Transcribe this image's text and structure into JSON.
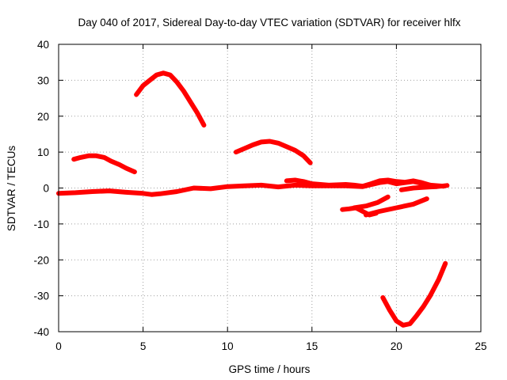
{
  "chart_data": {
    "type": "line",
    "title": "Day 040 of 2017, Sidereal Day-to-day VTEC variation (SDTVAR) for receiver hlfx",
    "xlabel": "GPS time / hours",
    "ylabel": "SDTVAR / TECUs",
    "xlim": [
      0,
      25
    ],
    "ylim": [
      -40,
      40
    ],
    "xticks": [
      0,
      5,
      10,
      15,
      20,
      25
    ],
    "yticks": [
      -40,
      -30,
      -20,
      -10,
      0,
      10,
      20,
      30,
      40
    ],
    "grid": true,
    "legend": "none",
    "line_color": "#ff0000",
    "series": [
      {
        "name": "arc-main-baseline",
        "x": [
          0,
          1,
          2,
          3,
          4,
          5,
          5.5,
          6,
          7,
          8,
          9,
          10,
          11,
          12,
          13,
          14,
          15,
          16,
          17,
          18,
          19,
          19.5,
          20,
          21,
          22,
          22.8
        ],
        "y": [
          -1.5,
          -1.3,
          -1,
          -0.8,
          -1.2,
          -1.5,
          -1.8,
          -1.6,
          -1,
          0,
          -0.2,
          0.4,
          0.6,
          0.8,
          0.3,
          0.8,
          0.6,
          0.6,
          0.6,
          0.4,
          1.5,
          1.8,
          1.2,
          1.8,
          0.8,
          0.5
        ]
      },
      {
        "name": "arc-upper-baseline",
        "x": [
          13.5,
          14,
          14.5,
          15,
          16,
          17,
          17.5,
          18,
          18.5,
          19,
          19.5,
          20,
          20.5,
          21,
          21.5,
          22
        ],
        "y": [
          2,
          2.2,
          1.8,
          1.2,
          0.8,
          1,
          0.8,
          0.5,
          1.2,
          2,
          2.2,
          1.8,
          1.6,
          2,
          1.5,
          0.8
        ]
      },
      {
        "name": "arc-lower-baseline",
        "x": [
          20.3,
          21,
          21.6,
          22,
          22.4,
          22.8,
          23
        ],
        "y": [
          -0.5,
          0,
          0.2,
          0.3,
          0.4,
          0.6,
          0.7
        ]
      },
      {
        "name": "arc-morning-hump",
        "x": [
          0.9,
          1.3,
          1.8,
          2.2,
          2.7,
          3.1,
          3.6,
          4,
          4.5
        ],
        "y": [
          8,
          8.5,
          9,
          9,
          8.5,
          7.5,
          6.5,
          5.5,
          4.5
        ]
      },
      {
        "name": "arc-peak",
        "x": [
          4.6,
          5,
          5.4,
          5.8,
          6.2,
          6.6,
          7,
          7.4,
          7.8,
          8.2,
          8.6
        ],
        "y": [
          26,
          28.5,
          30,
          31.5,
          32,
          31.5,
          29.5,
          27,
          24,
          21,
          17.5
        ]
      },
      {
        "name": "arc-midday-hump",
        "x": [
          10.5,
          11,
          11.5,
          12,
          12.5,
          13,
          13.5,
          14,
          14.5,
          14.9
        ],
        "y": [
          10,
          11,
          12,
          12.8,
          13,
          12.5,
          11.5,
          10.5,
          9,
          7
        ]
      },
      {
        "name": "arc-dip-left",
        "x": [
          16.8,
          17.2,
          17.6,
          18,
          18.4,
          18.8
        ],
        "y": [
          -6,
          -5.8,
          -5.5,
          -6.5,
          -7.5,
          -7
        ]
      },
      {
        "name": "arc-dip-rise-a",
        "x": [
          17.5,
          18.2,
          18.9,
          19.5
        ],
        "y": [
          -5.5,
          -5,
          -4,
          -2.5
        ]
      },
      {
        "name": "arc-dip-rise-b",
        "x": [
          18.2,
          19,
          20,
          21,
          21.8
        ],
        "y": [
          -7.5,
          -6.5,
          -5.5,
          -4.5,
          -3
        ]
      },
      {
        "name": "arc-deep-valley",
        "x": [
          19.2,
          19.6,
          20,
          20.4,
          20.8,
          21.2,
          21.6,
          22,
          22.5,
          22.9
        ],
        "y": [
          -30.5,
          -34,
          -37,
          -38.2,
          -37.8,
          -35.5,
          -33,
          -30,
          -25.5,
          -21
        ]
      }
    ]
  }
}
